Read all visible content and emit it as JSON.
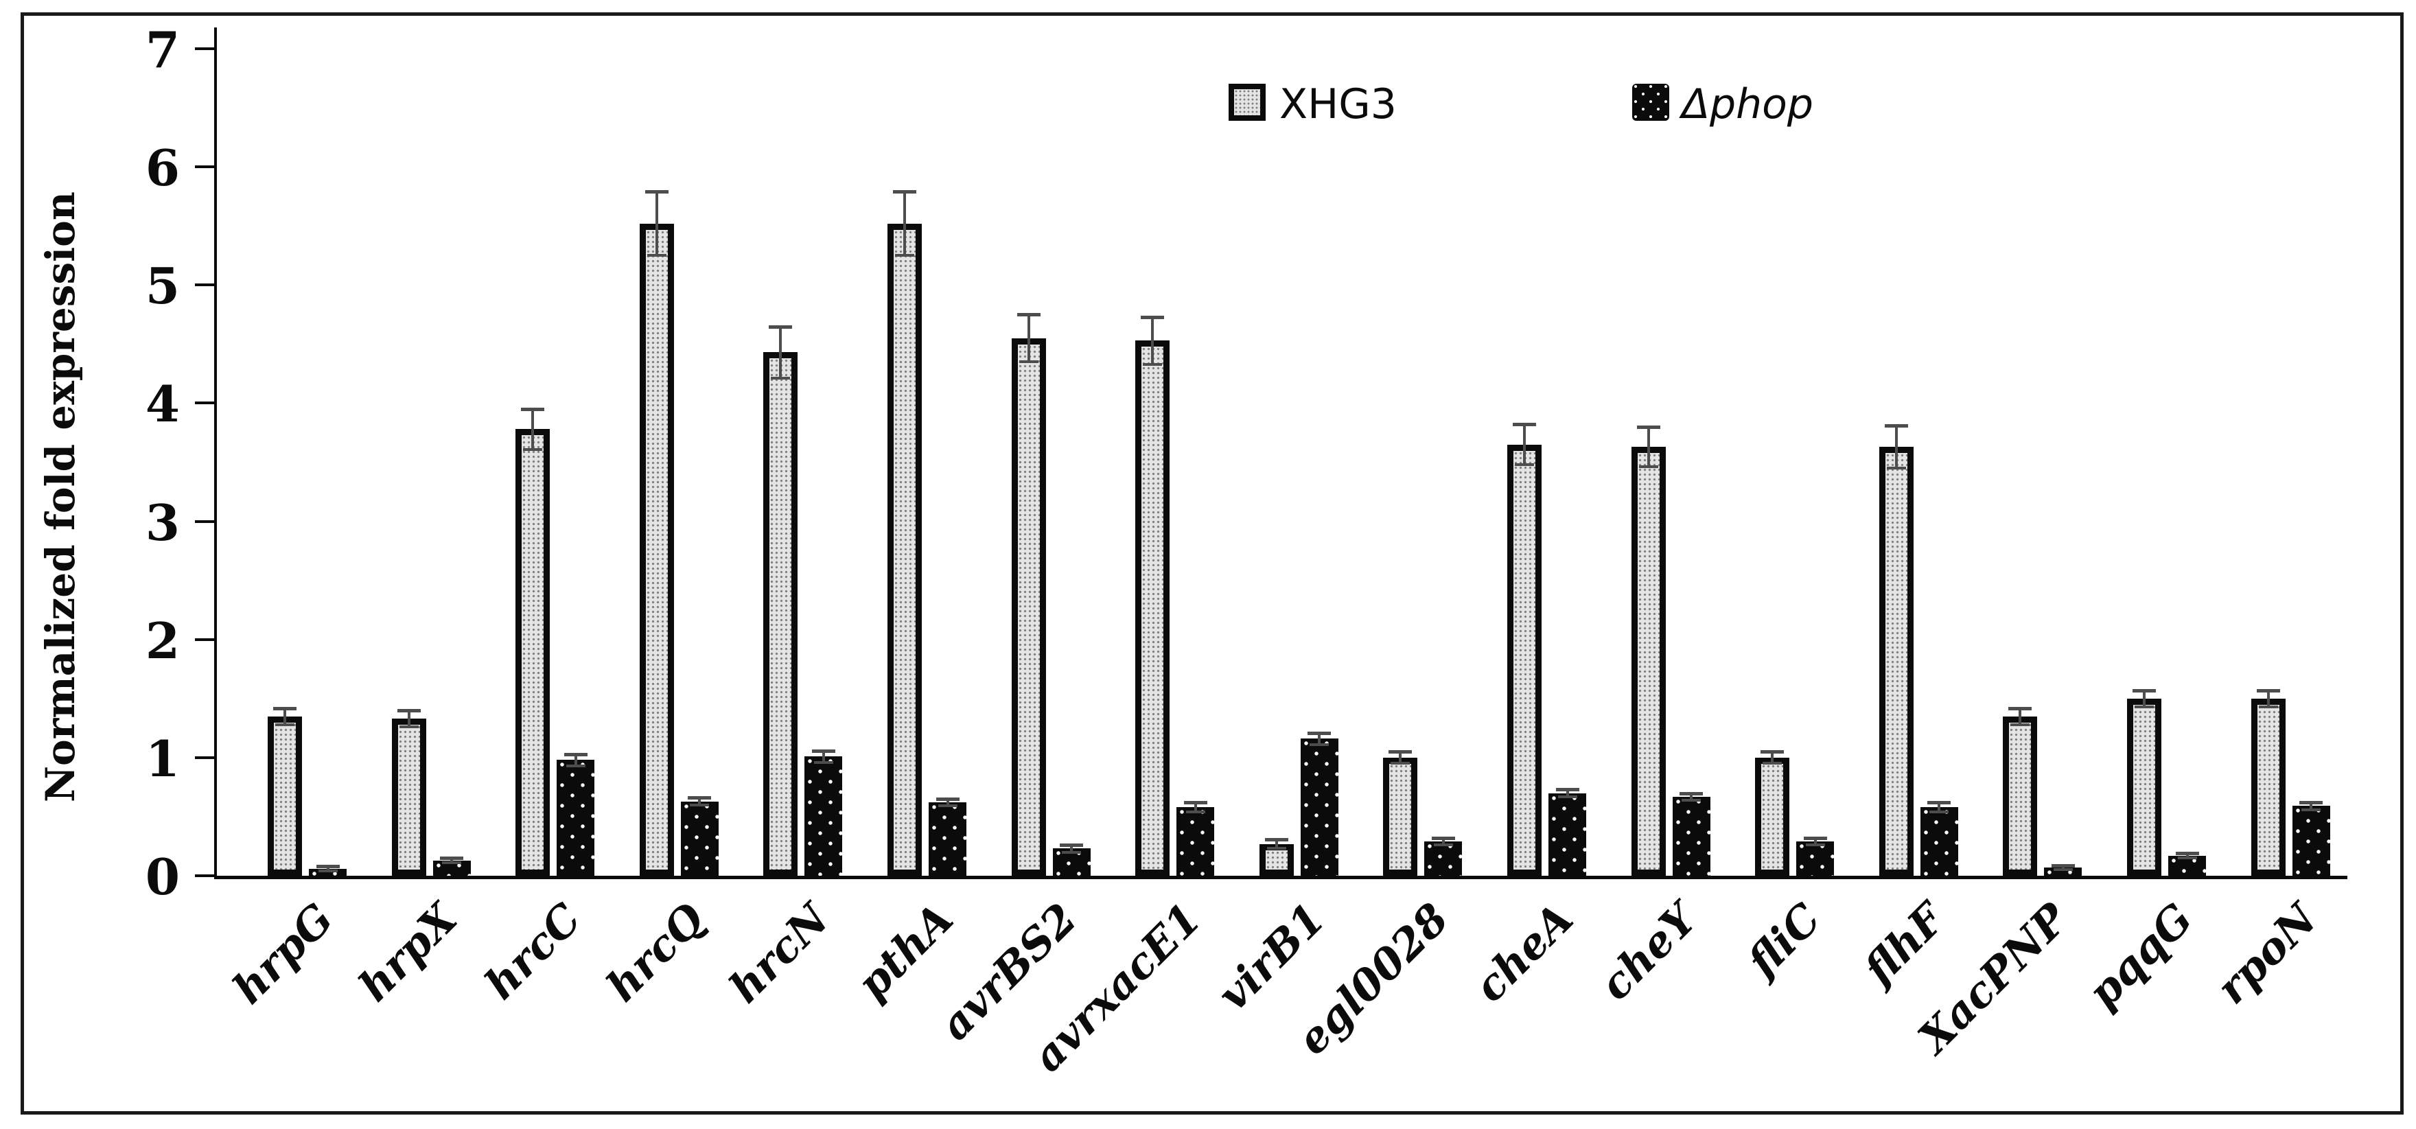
{
  "figure": {
    "background": "#ffffff",
    "frame_border_color": "#1a1a1a",
    "axis_color": "#0b0b0b",
    "error_bar_color": "#4d4d4d"
  },
  "legend": {
    "position": "top-center",
    "items": [
      {
        "label": "XHG3",
        "swatch": "gray-dot-hatch",
        "color": "#e4e4e4",
        "italic": false
      },
      {
        "label": "Δphop",
        "swatch": "black-white-dots",
        "color": "#0b0b0b",
        "italic": true
      }
    ]
  },
  "chart_data": {
    "type": "bar",
    "title": "",
    "xlabel": "",
    "ylabel": "Normalized fold expression",
    "ylim": [
      0,
      7
    ],
    "y_ticks": [
      0,
      1,
      2,
      3,
      4,
      5,
      6,
      7
    ],
    "grid": false,
    "legend_position": "top-center",
    "categories": [
      "hrpG",
      "hrpX",
      "hrcC",
      "hrcQ",
      "hrcN",
      "pthA",
      "avrBS2",
      "avrxacE1",
      "virB1",
      "egl0028",
      "cheA",
      "cheY",
      "fliC",
      "flhF",
      "XacPNP",
      "pqqG",
      "rpoN"
    ],
    "series": [
      {
        "name": "XHG3",
        "style": "light-gray bar with fine dot hatch, thick black outline",
        "color": "#e4e4e4",
        "values": [
          1.35,
          1.33,
          3.78,
          5.52,
          4.43,
          5.52,
          4.55,
          4.53,
          0.27,
          1.0,
          3.65,
          3.63,
          1.0,
          3.63,
          1.35,
          1.5,
          1.5
        ],
        "errors": [
          0.07,
          0.07,
          0.17,
          0.27,
          0.22,
          0.27,
          0.2,
          0.2,
          0.04,
          0.05,
          0.17,
          0.17,
          0.05,
          0.18,
          0.07,
          0.07,
          0.07
        ]
      },
      {
        "name": "Δphop",
        "style": "black bar with sparse white dots",
        "color": "#0b0b0b",
        "values": [
          0.06,
          0.13,
          0.98,
          0.63,
          1.01,
          0.62,
          0.23,
          0.58,
          1.16,
          0.29,
          0.7,
          0.67,
          0.29,
          0.58,
          0.07,
          0.17,
          0.59
        ],
        "errors": [
          0.02,
          0.02,
          0.05,
          0.03,
          0.05,
          0.03,
          0.03,
          0.04,
          0.05,
          0.03,
          0.03,
          0.03,
          0.03,
          0.04,
          0.02,
          0.02,
          0.03
        ]
      }
    ]
  }
}
